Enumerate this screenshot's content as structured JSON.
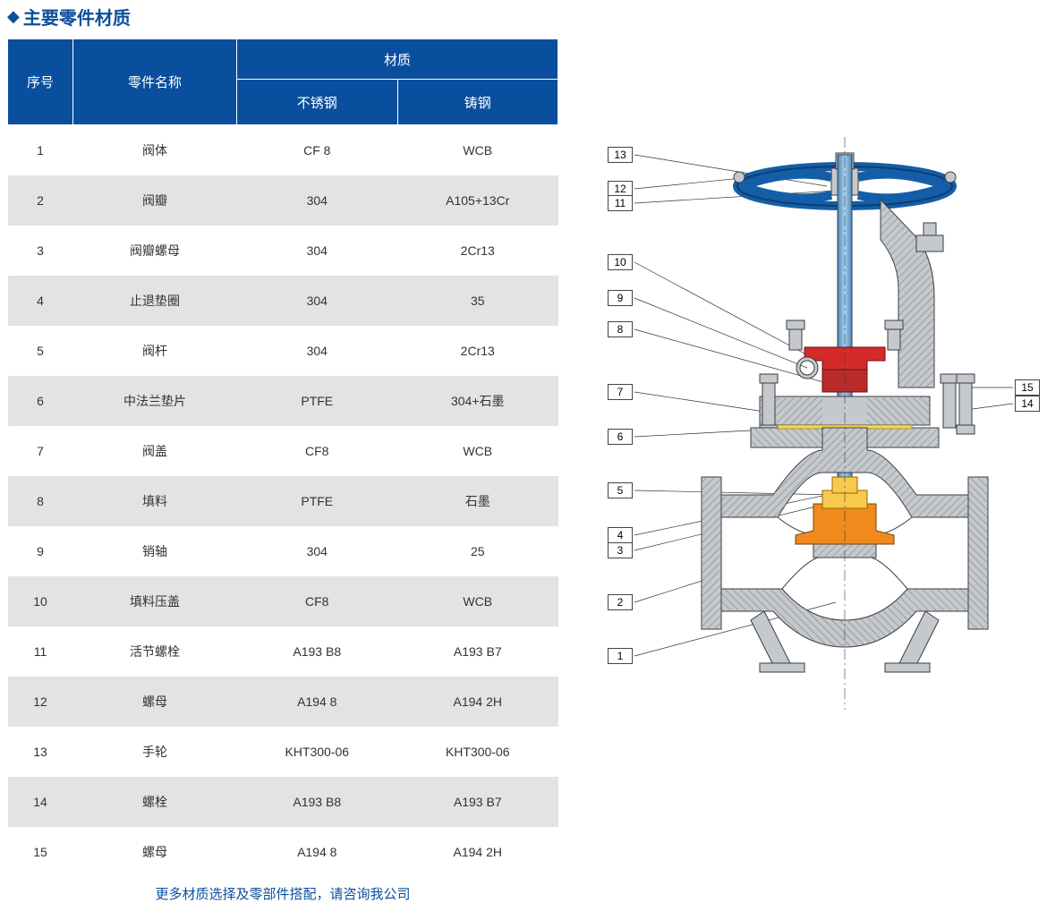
{
  "title": "主要零件材质",
  "table": {
    "header_seq": "序号",
    "header_name": "零件名称",
    "header_material": "材质",
    "header_stainless": "不锈钢",
    "header_cast": "铸钢",
    "rows": [
      {
        "seq": "1",
        "name": "阀体",
        "ss": "CF 8",
        "cs": "WCB"
      },
      {
        "seq": "2",
        "name": "阀瓣",
        "ss": "304",
        "cs": "A105+13Cr"
      },
      {
        "seq": "3",
        "name": "阀瓣螺母",
        "ss": "304",
        "cs": "2Cr13"
      },
      {
        "seq": "4",
        "name": "止退垫圈",
        "ss": "304",
        "cs": "35"
      },
      {
        "seq": "5",
        "name": "阀杆",
        "ss": "304",
        "cs": "2Cr13"
      },
      {
        "seq": "6",
        "name": "中法兰垫片",
        "ss": "PTFE",
        "cs": "304+石墨"
      },
      {
        "seq": "7",
        "name": "阀盖",
        "ss": "CF8",
        "cs": "WCB"
      },
      {
        "seq": "8",
        "name": "填料",
        "ss": "PTFE",
        "cs": "石墨"
      },
      {
        "seq": "9",
        "name": "销轴",
        "ss": "304",
        "cs": "25"
      },
      {
        "seq": "10",
        "name": "填料压盖",
        "ss": "CF8",
        "cs": "WCB"
      },
      {
        "seq": "11",
        "name": "活节螺栓",
        "ss": "A193 B8",
        "cs": "A193 B7"
      },
      {
        "seq": "12",
        "name": "螺母",
        "ss": "A194 8",
        "cs": "A194 2H"
      },
      {
        "seq": "13",
        "name": "手轮",
        "ss": "KHT300-06",
        "cs": "KHT300-06"
      },
      {
        "seq": "14",
        "name": "螺栓",
        "ss": "A193 B8",
        "cs": "A193 B7"
      },
      {
        "seq": "15",
        "name": "螺母",
        "ss": "A194 8",
        "cs": "A194 2H"
      }
    ]
  },
  "footnote": "更多材质选择及零部件搭配，请咨询我公司",
  "callouts_left": [
    "13",
    "12",
    "11",
    "10",
    "9",
    "8",
    "7",
    "6",
    "5",
    "4",
    "3",
    "2",
    "1"
  ],
  "callouts_right": [
    "15",
    "14"
  ],
  "diagram_colors": {
    "body": "#c5c9cd",
    "body_stroke": "#3a3d41",
    "hatch": "#7d8288",
    "handwheel": "#145ea8",
    "stem": "#6fa9d6",
    "packing_gland": "#d42a2a",
    "packing": "#b82c2c",
    "disc": "#f08a1d",
    "disc_inner": "#f9c94e",
    "gasket": "#f2d94e"
  }
}
